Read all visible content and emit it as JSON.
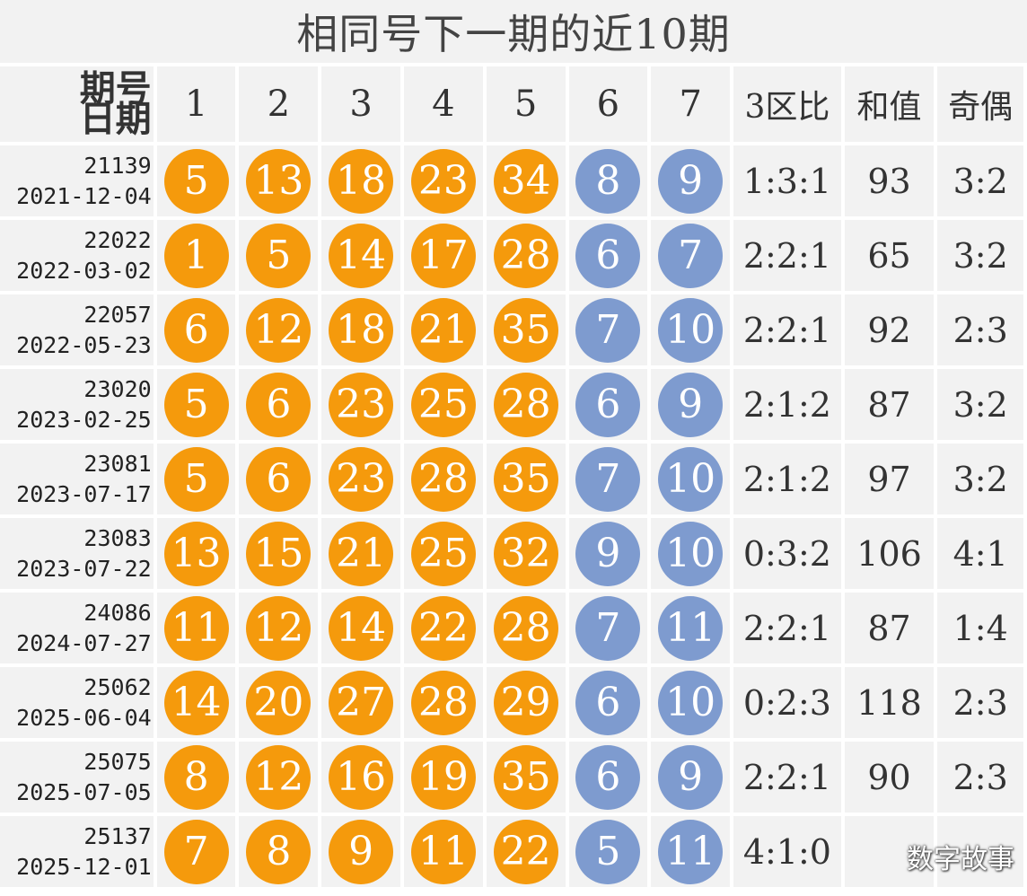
{
  "title": "相同号下一期的近10期",
  "header": {
    "label_issue": "期号",
    "label_date": "日期",
    "cols": [
      "1",
      "2",
      "3",
      "4",
      "5",
      "6",
      "7",
      "3区比",
      "和值",
      "奇偶"
    ]
  },
  "colors": {
    "front_ball": "#f59a0c",
    "back_ball": "#7e9bcf",
    "cell_bg": "#f2f2f2"
  },
  "rows": [
    {
      "issue": "21139",
      "date": "2021-12-04",
      "front": [
        "5",
        "13",
        "18",
        "23",
        "34"
      ],
      "back": [
        "8",
        "9"
      ],
      "ratio": "1:3:1",
      "sum": "93",
      "odd_even": "3:2"
    },
    {
      "issue": "22022",
      "date": "2022-03-02",
      "front": [
        "1",
        "5",
        "14",
        "17",
        "28"
      ],
      "back": [
        "6",
        "7"
      ],
      "ratio": "2:2:1",
      "sum": "65",
      "odd_even": "3:2"
    },
    {
      "issue": "22057",
      "date": "2022-05-23",
      "front": [
        "6",
        "12",
        "18",
        "21",
        "35"
      ],
      "back": [
        "7",
        "10"
      ],
      "ratio": "2:2:1",
      "sum": "92",
      "odd_even": "2:3"
    },
    {
      "issue": "23020",
      "date": "2023-02-25",
      "front": [
        "5",
        "6",
        "23",
        "25",
        "28"
      ],
      "back": [
        "6",
        "9"
      ],
      "ratio": "2:1:2",
      "sum": "87",
      "odd_even": "3:2"
    },
    {
      "issue": "23081",
      "date": "2023-07-17",
      "front": [
        "5",
        "6",
        "23",
        "28",
        "35"
      ],
      "back": [
        "7",
        "10"
      ],
      "ratio": "2:1:2",
      "sum": "97",
      "odd_even": "3:2"
    },
    {
      "issue": "23083",
      "date": "2023-07-22",
      "front": [
        "13",
        "15",
        "21",
        "25",
        "32"
      ],
      "back": [
        "9",
        "10"
      ],
      "ratio": "0:3:2",
      "sum": "106",
      "odd_even": "4:1"
    },
    {
      "issue": "24086",
      "date": "2024-07-27",
      "front": [
        "11",
        "12",
        "14",
        "22",
        "28"
      ],
      "back": [
        "7",
        "11"
      ],
      "ratio": "2:2:1",
      "sum": "87",
      "odd_even": "1:4"
    },
    {
      "issue": "25062",
      "date": "2025-06-04",
      "front": [
        "14",
        "20",
        "27",
        "28",
        "29"
      ],
      "back": [
        "6",
        "10"
      ],
      "ratio": "0:2:3",
      "sum": "118",
      "odd_even": "2:3"
    },
    {
      "issue": "25075",
      "date": "2025-07-05",
      "front": [
        "8",
        "12",
        "16",
        "19",
        "35"
      ],
      "back": [
        "6",
        "9"
      ],
      "ratio": "2:2:1",
      "sum": "90",
      "odd_even": "2:3"
    },
    {
      "issue": "25137",
      "date": "2025-12-01",
      "front": [
        "7",
        "8",
        "9",
        "11",
        "22"
      ],
      "back": [
        "5",
        "11"
      ],
      "ratio": "4:1:0",
      "sum": "",
      "odd_even": ""
    }
  ],
  "watermark": "数字故事"
}
